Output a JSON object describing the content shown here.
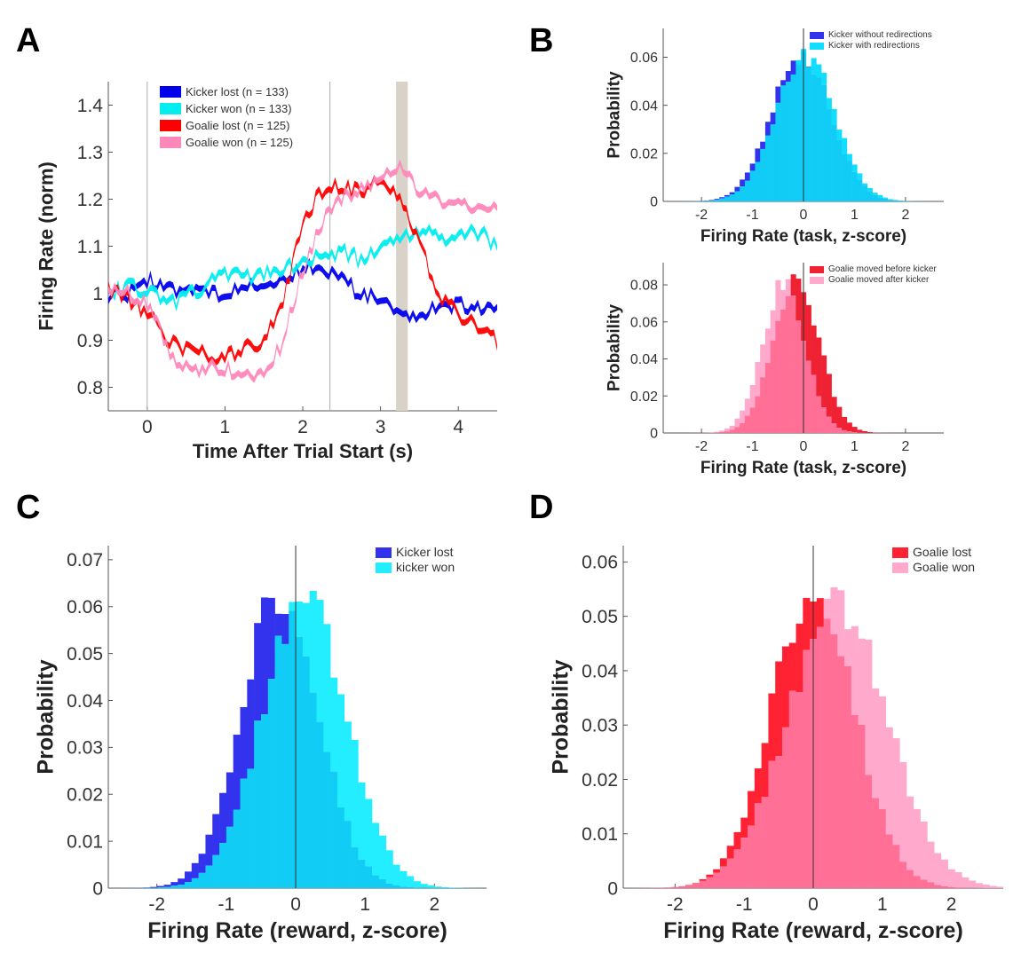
{
  "panel_letters": {
    "a": "A",
    "b": "B",
    "c": "C",
    "d": "D"
  },
  "chart_data": [
    {
      "id": "A",
      "type": "line",
      "xlabel": "Time After Trial Start (s)",
      "ylabel": "Firing Rate (norm)",
      "xlim": [
        -0.5,
        4.5
      ],
      "ylim": [
        0.75,
        1.45
      ],
      "xticks": [
        0,
        1,
        2,
        3,
        4
      ],
      "yticks": [
        0.8,
        0.9,
        1.0,
        1.1,
        1.2,
        1.3,
        1.4
      ],
      "ytick_labels": [
        "0.8",
        "0.9",
        "1",
        "1.1",
        "1.2",
        "1.3",
        "1.4"
      ],
      "vlines": [
        0,
        2.35
      ],
      "shaded_band": [
        3.2,
        3.35
      ],
      "x": [
        -0.5,
        -0.25,
        0,
        0.25,
        0.5,
        0.75,
        1,
        1.25,
        1.5,
        1.75,
        2,
        2.25,
        2.5,
        2.75,
        3,
        3.25,
        3.5,
        3.75,
        4,
        4.25,
        4.5
      ],
      "series": [
        {
          "name": "Kicker lost (n = 133)",
          "color": "#0000ee",
          "values": [
            1.0,
            1.0,
            1.03,
            1.0,
            1.02,
            1.0,
            1.0,
            1.01,
            1.02,
            1.03,
            1.05,
            1.06,
            1.03,
            1.0,
            0.98,
            0.95,
            0.96,
            0.97,
            0.98,
            0.97,
            0.96
          ]
        },
        {
          "name": "Kicker won (n = 133)",
          "color": "#00eeee",
          "values": [
            1.0,
            1.01,
            1.01,
            0.98,
            0.99,
            1.02,
            1.04,
            1.03,
            1.04,
            1.05,
            1.07,
            1.08,
            1.09,
            1.07,
            1.1,
            1.12,
            1.13,
            1.12,
            1.12,
            1.13,
            1.1
          ]
        },
        {
          "name": "Goalie lost (n = 125)",
          "color": "#ff0000",
          "values": [
            1.01,
            0.99,
            0.96,
            0.9,
            0.88,
            0.87,
            0.86,
            0.88,
            0.9,
            0.99,
            1.15,
            1.22,
            1.23,
            1.21,
            1.24,
            1.2,
            1.1,
            1.0,
            0.95,
            0.93,
            0.9
          ]
        },
        {
          "name": "Goalie won (n = 125)",
          "color": "#ff88bb",
          "values": [
            1.0,
            1.0,
            0.98,
            0.88,
            0.84,
            0.84,
            0.84,
            0.83,
            0.82,
            0.9,
            1.05,
            1.15,
            1.2,
            1.22,
            1.25,
            1.28,
            1.22,
            1.2,
            1.18,
            1.19,
            1.19
          ]
        }
      ],
      "legend_position": "top-left"
    },
    {
      "id": "B-top",
      "type": "histogram",
      "xlabel": "Firing Rate (task, z-score)",
      "ylabel": "Probability",
      "xlim": [
        -2.75,
        2.75
      ],
      "ylim": [
        0,
        0.072
      ],
      "xticks": [
        -2,
        -1,
        0,
        1,
        2
      ],
      "yticks": [
        0,
        0.02,
        0.04,
        0.06
      ],
      "ytick_labels": [
        "0",
        "0.02",
        "0.04",
        "0.06"
      ],
      "bin_width": 0.1,
      "series": [
        {
          "name": "Kicker without redirections",
          "color": "#3333ee",
          "mean": -0.05,
          "sd": 0.58,
          "peak": 0.062
        },
        {
          "name": "Kicker with redirections",
          "color": "#11ddff",
          "mean": 0.03,
          "sd": 0.58,
          "peak": 0.061
        }
      ],
      "legend_position": "top-right"
    },
    {
      "id": "B-bottom",
      "type": "histogram",
      "xlabel": "Firing Rate (task, z-score)",
      "ylabel": "Probability",
      "xlim": [
        -2.75,
        2.75
      ],
      "ylim": [
        0,
        0.092
      ],
      "xticks": [
        -2,
        -1,
        0,
        1,
        2
      ],
      "yticks": [
        0,
        0.02,
        0.04,
        0.06,
        0.08
      ],
      "ytick_labels": [
        "0",
        "0.02",
        "0.04",
        "0.06",
        "0.08"
      ],
      "bin_width": 0.1,
      "series": [
        {
          "name": "Goalie moved before kicker",
          "color": "#ee2233",
          "mean": -0.15,
          "sd": 0.45,
          "peak": 0.084
        },
        {
          "name": "Goalie moved after kicker",
          "color": "#ffaacc",
          "mean": -0.38,
          "sd": 0.42,
          "peak": 0.08
        }
      ],
      "legend_position": "top-right"
    },
    {
      "id": "C",
      "type": "histogram",
      "xlabel": "Firing Rate (reward, z-score)",
      "ylabel": "Probability",
      "xlim": [
        -2.7,
        2.75
      ],
      "ylim": [
        0,
        0.073
      ],
      "xticks": [
        -2,
        -1,
        0,
        1,
        2
      ],
      "yticks": [
        0,
        0.01,
        0.02,
        0.03,
        0.04,
        0.05,
        0.06,
        0.07
      ],
      "ytick_labels": [
        "0",
        "0.01",
        "0.02",
        "0.03",
        "0.04",
        "0.05",
        "0.06",
        "0.07"
      ],
      "bin_width": 0.1,
      "series": [
        {
          "name": "Kicker lost",
          "color": "#3333ee",
          "mean": -0.22,
          "sd": 0.55,
          "peak": 0.063
        },
        {
          "name": "kicker won",
          "color": "#22eeff",
          "mean": 0.12,
          "sd": 0.6,
          "peak": 0.062
        }
      ],
      "legend_position": "top-right"
    },
    {
      "id": "D",
      "type": "histogram",
      "xlabel": "Firing Rate (reward, z-score)",
      "ylabel": "Probability",
      "xlim": [
        -2.75,
        2.75
      ],
      "ylim": [
        0,
        0.063
      ],
      "xticks": [
        -2,
        -1,
        0,
        1,
        2
      ],
      "yticks": [
        0,
        0.01,
        0.02,
        0.03,
        0.04,
        0.05,
        0.06
      ],
      "ytick_labels": [
        "0",
        "0.01",
        "0.02",
        "0.03",
        "0.04",
        "0.05",
        "0.06"
      ],
      "bin_width": 0.1,
      "series": [
        {
          "name": "Goalie lost",
          "color": "#ff2233",
          "mean": 0.0,
          "sd": 0.6,
          "peak": 0.055
        },
        {
          "name": "Goalie won",
          "color": "#ffaacc",
          "mean": 0.35,
          "sd": 0.72,
          "peak": 0.052
        }
      ],
      "legend_position": "top-right"
    }
  ]
}
